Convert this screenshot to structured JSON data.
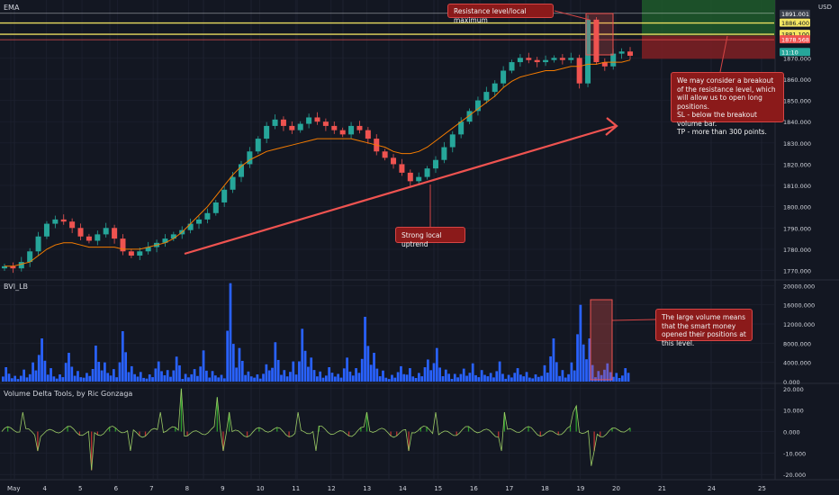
{
  "chart_data": [
    {
      "type": "candlestick",
      "panel": "price",
      "indicator_label": "EMA",
      "currency": "USD",
      "x_tick_labels": [
        "May",
        "4",
        "5",
        "6",
        "7",
        "8",
        "9",
        "10",
        "11",
        "12",
        "13",
        "14",
        "15",
        "16",
        "17",
        "18",
        "19",
        "20",
        "21",
        "24",
        "25"
      ],
      "y_tick_labels": [
        "1770.000",
        "1780.000",
        "1790.000",
        "1800.000",
        "1810.000",
        "1820.000",
        "1830.000",
        "1840.000",
        "1850.000",
        "1860.000",
        "1870.000",
        "1891.001"
      ],
      "ylim": [
        1766,
        1893
      ],
      "closes": [
        1772,
        1771,
        1774,
        1779,
        1786,
        1792,
        1794,
        1793,
        1790,
        1786,
        1784,
        1787,
        1790,
        1785,
        1779,
        1777,
        1779,
        1781,
        1783,
        1785,
        1787,
        1789,
        1792,
        1794,
        1797,
        1802,
        1808,
        1814,
        1820,
        1826,
        1832,
        1838,
        1841,
        1838,
        1836,
        1839,
        1842,
        1840,
        1838,
        1836,
        1834,
        1838,
        1836,
        1832,
        1826,
        1823,
        1820,
        1816,
        1812,
        1814,
        1818,
        1822,
        1828,
        1834,
        1840,
        1845,
        1850,
        1854,
        1858,
        1864,
        1868,
        1870,
        1869,
        1868,
        1869,
        1870,
        1869,
        1870,
        1858,
        1888,
        1868,
        1866,
        1872,
        1873,
        1871
      ],
      "ema": [
        1772,
        1772,
        1773,
        1774,
        1777,
        1780,
        1782,
        1783,
        1783,
        1782,
        1781,
        1781,
        1781,
        1781,
        1780,
        1780,
        1780,
        1781,
        1782,
        1783,
        1785,
        1788,
        1792,
        1796,
        1800,
        1805,
        1810,
        1815,
        1819,
        1822,
        1824,
        1826,
        1827,
        1828,
        1829,
        1830,
        1831,
        1832,
        1832,
        1832,
        1832,
        1832,
        1831,
        1830,
        1829,
        1828,
        1826,
        1825,
        1825,
        1826,
        1828,
        1831,
        1834,
        1837,
        1840,
        1843,
        1846,
        1849,
        1852,
        1856,
        1859,
        1861,
        1862,
        1863,
        1864,
        1864,
        1865,
        1866,
        1866,
        1867,
        1867,
        1868,
        1868,
        1868,
        1869
      ],
      "horizontal_levels": [
        1891.001,
        1886.4,
        1881.1,
        1878.568
      ],
      "price_tags": [
        "1891.001",
        "1886.400",
        "1881.100",
        "1878.568",
        "11:10"
      ],
      "annotations": [
        "Resistance level/local maximum",
        "We may consider a breakout of the resistance level, which will allow us to open long positions.\nSL - below the breakout volume bar.\nTP - more than 300 points.",
        "Strong local uptrend"
      ]
    },
    {
      "type": "bar",
      "panel": "volume",
      "indicator_label": "BVI_LB",
      "y_tick_labels": [
        "0.000",
        "4000.000",
        "8000.000",
        "12000.000",
        "16000.000",
        "20000.000"
      ],
      "ylim": [
        0,
        21000
      ],
      "values_sample": [
        3000,
        1200,
        2500,
        4000,
        9000,
        2800,
        1500,
        6000,
        2200,
        1800,
        7500,
        4000,
        2600,
        10500,
        3200,
        2000,
        1500,
        4200,
        2400,
        5200,
        1600,
        2600,
        6500,
        2200,
        1400,
        20500,
        7000,
        2100,
        1500,
        3600,
        8200,
        2400,
        4200,
        11000,
        5000,
        2100,
        3000,
        1600,
        5000,
        2800,
        13500,
        6000,
        2300,
        1400,
        3200,
        2800,
        1800,
        4600,
        7000,
        2500,
        1600,
        2700,
        3800,
        2400,
        1800,
        4200,
        1400,
        2800,
        2000,
        1500,
        3400,
        9000,
        2400,
        4000,
        16000,
        9000,
        2200,
        3800,
        1800,
        2800
      ],
      "annotation": "The large volume means that the smart money opened their positions at this level."
    },
    {
      "type": "line",
      "panel": "volume-delta",
      "indicator_label": "Volume Delta Tools, by Ric Gonzaga",
      "y_tick_labels": [
        "-20.000",
        "-10.000",
        "0.000",
        "10.000",
        "20.000"
      ],
      "ylim": [
        -22,
        22
      ]
    }
  ],
  "colors": {
    "background": "#131722",
    "grid": "#1e2230",
    "up": "#26a69a",
    "down": "#ef5350",
    "ema": "#f57c00",
    "volume": "#2962ff",
    "delta_up": "#2ebd2e",
    "delta_down": "#e53935",
    "annotation": "#8b1a1a",
    "resistance": "#f5e663"
  }
}
